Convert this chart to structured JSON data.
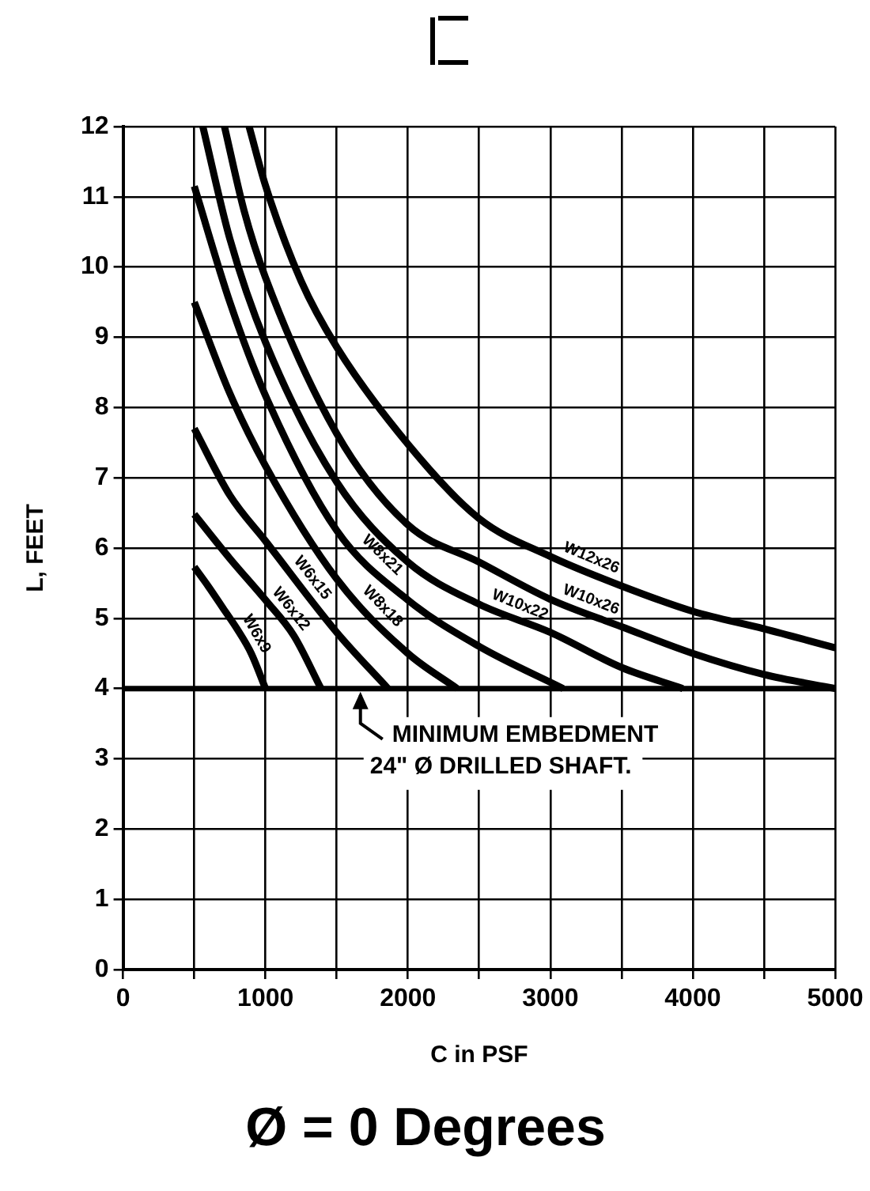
{
  "chart_data": {
    "type": "line",
    "title": "Ø = 0 Degrees",
    "xlabel": "C in PSF",
    "ylabel": "L, FEET",
    "xlim": [
      0,
      5000
    ],
    "ylim": [
      0,
      12
    ],
    "xticks": [
      0,
      {
        "value": 500,
        "label": null
      },
      1000,
      {
        "value": 1500,
        "label": null
      },
      2000,
      {
        "value": 2500,
        "label": null
      },
      3000,
      {
        "value": 3500,
        "label": null
      },
      4000,
      {
        "value": 4500,
        "label": null
      },
      5000
    ],
    "yticks": [
      0,
      1,
      2,
      3,
      4,
      5,
      6,
      7,
      8,
      9,
      10,
      11,
      12
    ],
    "grid": true,
    "legend": false,
    "marker": "none",
    "line_style": "solid",
    "series": [
      {
        "name": "W6x9",
        "color": "#000000",
        "x": [
          500,
          600,
          700,
          800,
          900,
          1000
        ],
        "values": [
          5.73,
          5.45,
          5.15,
          4.85,
          4.5,
          4.0
        ]
      },
      {
        "name": "W6x12",
        "color": "#000000",
        "x": [
          500,
          750,
          1000,
          1200,
          1390
        ],
        "values": [
          6.48,
          5.85,
          5.26,
          4.75,
          4.0
        ]
      },
      {
        "name": "W6x15",
        "color": "#000000",
        "x": [
          500,
          750,
          1000,
          1500,
          1860
        ],
        "values": [
          7.7,
          6.75,
          6.1,
          4.8,
          4.0
        ]
      },
      {
        "name": "W8x18",
        "color": "#000000",
        "x": [
          500,
          750,
          1000,
          1500,
          2000,
          2345
        ],
        "values": [
          9.5,
          8.2,
          7.17,
          5.56,
          4.5,
          4.0
        ]
      },
      {
        "name": "W8x21",
        "color": "#000000",
        "x": [
          500,
          750,
          1000,
          1500,
          2000,
          2500,
          3090
        ],
        "values": [
          11.15,
          9.5,
          8.17,
          6.25,
          5.26,
          4.6,
          4.0
        ]
      },
      {
        "name": "W10x22",
        "color": "#000000",
        "x": [
          560,
          750,
          1000,
          1500,
          2000,
          2500,
          3000,
          3500,
          3930
        ],
        "values": [
          12,
          10.4,
          8.93,
          6.94,
          5.8,
          5.2,
          4.8,
          4.3,
          4.0
        ]
      },
      {
        "name": "W10x26",
        "color": "#000000",
        "x": [
          712,
          850,
          1000,
          1500,
          2000,
          2500,
          3000,
          3500,
          4000,
          4500,
          5000
        ],
        "values": [
          12,
          10.8,
          9.85,
          7.63,
          6.33,
          5.8,
          5.27,
          4.88,
          4.5,
          4.2,
          4.0
        ]
      },
      {
        "name": "W12x26",
        "color": "#000000",
        "x": [
          885,
          1000,
          1250,
          1500,
          2000,
          2500,
          3000,
          3500,
          4000,
          4500,
          5000
        ],
        "values": [
          12,
          11.16,
          9.8,
          8.86,
          7.48,
          6.42,
          5.88,
          5.46,
          5.1,
          4.85,
          4.58
        ]
      }
    ],
    "ref_lines": [
      {
        "axis": "y",
        "value": 4,
        "color": "#000000"
      }
    ],
    "annotations": [
      {
        "text": "MINIMUM EMBEDMENT\n24\" Ø DRILLED SHAFT.",
        "x": 1600,
        "y": 4
      }
    ]
  }
}
